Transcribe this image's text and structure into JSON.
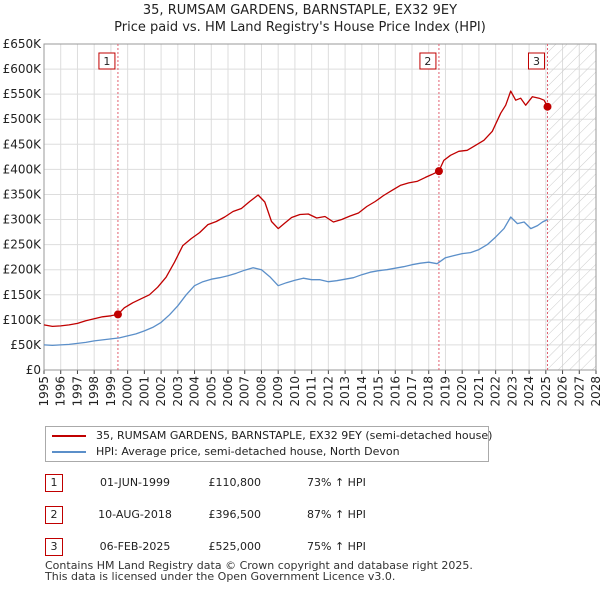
{
  "title": {
    "line1": "35, RUMSAM GARDENS, BARNSTAPLE, EX32 9EY",
    "line2": "Price paid vs. HM Land Registry's House Price Index (HPI)"
  },
  "colors": {
    "property": "#c00000",
    "hpi": "#5b8fc9",
    "marker_line": "#e06070"
  },
  "chart_data": {
    "type": "line",
    "title": "35, RUMSAM GARDENS, BARNSTAPLE, EX32 9EY",
    "subtitle": "Price paid vs. HM Land Registry's House Price Index (HPI)",
    "xlabel": "",
    "ylabel": "",
    "xlim": [
      1995,
      2028
    ],
    "ylim": [
      0,
      650000
    ],
    "grid": true,
    "x_ticks": [
      "1995",
      "1996",
      "1997",
      "1998",
      "1999",
      "2000",
      "2001",
      "2002",
      "2003",
      "2004",
      "2005",
      "2006",
      "2007",
      "2008",
      "2009",
      "2010",
      "2011",
      "2012",
      "2013",
      "2014",
      "2015",
      "2016",
      "2017",
      "2018",
      "2019",
      "2020",
      "2021",
      "2022",
      "2023",
      "2024",
      "2025",
      "2026",
      "2027",
      "2028"
    ],
    "y_ticks": [
      {
        "value": 0,
        "label": "£0"
      },
      {
        "value": 50000,
        "label": "£50K"
      },
      {
        "value": 100000,
        "label": "£100K"
      },
      {
        "value": 150000,
        "label": "£150K"
      },
      {
        "value": 200000,
        "label": "£200K"
      },
      {
        "value": 250000,
        "label": "£250K"
      },
      {
        "value": 300000,
        "label": "£300K"
      },
      {
        "value": 350000,
        "label": "£350K"
      },
      {
        "value": 400000,
        "label": "£400K"
      },
      {
        "value": 450000,
        "label": "£450K"
      },
      {
        "value": 500000,
        "label": "£500K"
      },
      {
        "value": 550000,
        "label": "£550K"
      },
      {
        "value": 600000,
        "label": "£600K"
      },
      {
        "value": 650000,
        "label": "£650K"
      }
    ],
    "forecast_start": 2025.1,
    "series": [
      {
        "name": "35, RUMSAM GARDENS, BARNSTAPLE, EX32 9EY (semi-detached house)",
        "x": [
          1995.0,
          1995.5,
          1996.0,
          1996.5,
          1997.0,
          1997.5,
          1998.0,
          1998.5,
          1999.0,
          1999.42,
          1999.8,
          2000.3,
          2000.8,
          2001.3,
          2001.8,
          2002.3,
          2002.8,
          2003.3,
          2003.8,
          2004.3,
          2004.8,
          2005.3,
          2005.8,
          2006.3,
          2006.8,
          2007.3,
          2007.8,
          2008.2,
          2008.6,
          2009.0,
          2009.4,
          2009.8,
          2010.3,
          2010.8,
          2011.3,
          2011.8,
          2012.3,
          2012.8,
          2013.3,
          2013.8,
          2014.3,
          2014.8,
          2015.3,
          2015.8,
          2016.3,
          2016.8,
          2017.3,
          2017.8,
          2018.2,
          2018.61,
          2018.9,
          2019.3,
          2019.8,
          2020.3,
          2020.8,
          2021.3,
          2021.8,
          2022.3,
          2022.6,
          2022.9,
          2023.2,
          2023.5,
          2023.8,
          2024.2,
          2024.6,
          2024.9,
          2025.1
        ],
        "values": [
          90000,
          87000,
          88000,
          90000,
          93000,
          98000,
          102000,
          106000,
          108000,
          110800,
          124000,
          134000,
          142000,
          150000,
          165000,
          185000,
          215000,
          248000,
          262000,
          274000,
          290000,
          296000,
          305000,
          316000,
          322000,
          336000,
          349000,
          335000,
          296000,
          282000,
          293000,
          304000,
          310000,
          311000,
          303000,
          306000,
          295000,
          300000,
          307000,
          313000,
          326000,
          336000,
          348000,
          358000,
          368000,
          373000,
          376000,
          384000,
          390000,
          396500,
          418000,
          428000,
          436000,
          438000,
          448000,
          458000,
          476000,
          512000,
          528000,
          556000,
          538000,
          542000,
          528000,
          545000,
          542000,
          538000,
          525000
        ]
      },
      {
        "name": "HPI: Average price, semi-detached house, North Devon",
        "x": [
          1995.0,
          1995.5,
          1996.0,
          1996.5,
          1997.0,
          1997.5,
          1998.0,
          1998.5,
          1999.0,
          1999.5,
          2000.0,
          2000.5,
          2001.0,
          2001.5,
          2002.0,
          2002.5,
          2003.0,
          2003.5,
          2004.0,
          2004.5,
          2005.0,
          2005.5,
          2006.0,
          2006.5,
          2007.0,
          2007.5,
          2008.0,
          2008.5,
          2009.0,
          2009.5,
          2010.0,
          2010.5,
          2011.0,
          2011.5,
          2012.0,
          2012.5,
          2013.0,
          2013.5,
          2014.0,
          2014.5,
          2015.0,
          2015.5,
          2016.0,
          2016.5,
          2017.0,
          2017.5,
          2018.0,
          2018.5,
          2019.0,
          2019.5,
          2020.0,
          2020.5,
          2021.0,
          2021.5,
          2022.0,
          2022.5,
          2022.9,
          2023.3,
          2023.7,
          2024.1,
          2024.5,
          2024.8,
          2025.1
        ],
        "values": [
          50000,
          49000,
          50000,
          51000,
          53000,
          55000,
          58000,
          60000,
          62000,
          64000,
          68000,
          72000,
          78000,
          85000,
          95000,
          110000,
          128000,
          150000,
          168000,
          176000,
          181000,
          184000,
          188000,
          193000,
          199000,
          204000,
          200000,
          186000,
          168000,
          174000,
          179000,
          183000,
          180000,
          180000,
          176000,
          178000,
          181000,
          184000,
          190000,
          195000,
          198000,
          200000,
          203000,
          206000,
          210000,
          213000,
          215000,
          212000,
          224000,
          228000,
          232000,
          234000,
          240000,
          250000,
          265000,
          282000,
          305000,
          292000,
          295000,
          282000,
          288000,
          295000,
          300000
        ]
      }
    ],
    "sales": [
      {
        "n": "1",
        "x": 1999.42,
        "value": 110800,
        "date": "01-JUN-1999",
        "price": "£110,800",
        "hpi": "73% ↑ HPI"
      },
      {
        "n": "2",
        "x": 2018.61,
        "value": 396500,
        "date": "10-AUG-2018",
        "price": "£396,500",
        "hpi": "87% ↑ HPI"
      },
      {
        "n": "3",
        "x": 2025.1,
        "value": 525000,
        "date": "06-FEB-2025",
        "price": "£525,000",
        "hpi": "75% ↑ HPI"
      }
    ]
  },
  "legend": {
    "property": "35, RUMSAM GARDENS, BARNSTAPLE, EX32 9EY (semi-detached house)",
    "hpi": "HPI: Average price, semi-detached house, North Devon"
  },
  "footer": {
    "line1": "Contains HM Land Registry data © Crown copyright and database right 2025.",
    "line2": "This data is licensed under the Open Government Licence v3.0."
  }
}
